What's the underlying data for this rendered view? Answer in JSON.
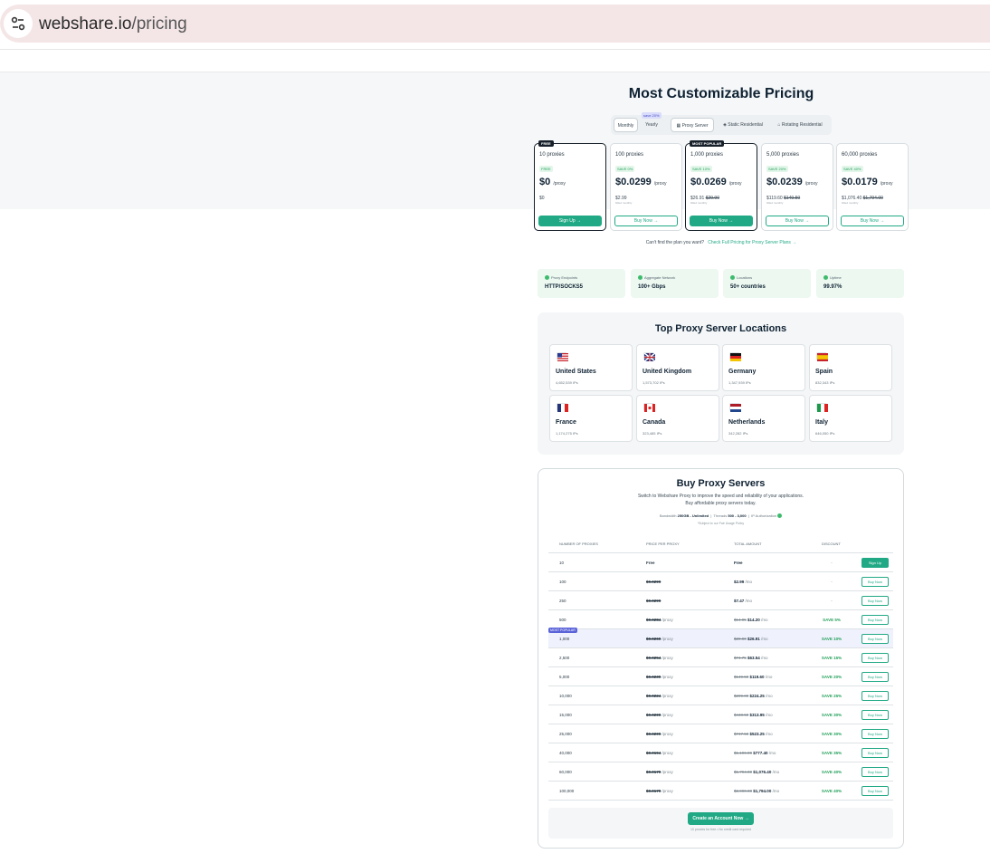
{
  "browser": {
    "url_host": "webshare.io",
    "url_path": "/pricing"
  },
  "hero": {
    "title": "Most Customizable Pricing"
  },
  "billing": {
    "monthly": "Monthly",
    "yearly": "Yearly",
    "save_tag": "save 20%"
  },
  "product_tabs": [
    "Proxy Server",
    "Static Residential",
    "Rotating Residential"
  ],
  "plans": [
    {
      "tag": "FREE",
      "qty": "10 proxies",
      "badge": "FREE",
      "price": "$0",
      "unit": "/proxy",
      "old": "$0",
      "old_strike": "",
      "sub": "",
      "button": "Sign Up →"
    },
    {
      "tag": "",
      "qty": "100 proxies",
      "badge": "SAVE 0%",
      "price": "$0.0299",
      "unit": "/proxy",
      "old": "$2.99",
      "old_strike": "",
      "sub": "billed monthly",
      "button": "Buy Now →"
    },
    {
      "tag": "MOST POPULAR",
      "qty": "1,000 proxies",
      "badge": "SAVE 10%",
      "price": "$0.0269",
      "unit": "/proxy",
      "old": "$26.91",
      "old_strike": "$29.90",
      "sub": "billed monthly",
      "button": "Buy Now →"
    },
    {
      "tag": "",
      "qty": "5,000 proxies",
      "badge": "SAVE 20%",
      "price": "$0.0239",
      "unit": "/proxy",
      "old": "$119.60",
      "old_strike": "$149.50",
      "sub": "billed monthly",
      "button": "Buy Now →"
    },
    {
      "tag": "",
      "qty": "60,000 proxies",
      "badge": "SAVE 40%",
      "price": "$0.0179",
      "unit": "/proxy",
      "old": "$1,076.40",
      "old_strike": "$1,794.00",
      "sub": "billed monthly",
      "button": "Buy Now →"
    }
  ],
  "cant_find": {
    "text": "Can't find the plan you want?",
    "link": "Check Full Pricing for Proxy Server Plans →"
  },
  "stats": [
    {
      "label": "Proxy Endpoints",
      "value": "HTTP/SOCKS5"
    },
    {
      "label": "Aggregate Network",
      "value": "100+ Gbps"
    },
    {
      "label": "Locations",
      "value": "50+ countries"
    },
    {
      "label": "Uptime",
      "value": "99.97%"
    }
  ],
  "locations": {
    "title": "Top Proxy Server Locations",
    "items": [
      {
        "name": "United States",
        "ips": "4,652,539 IPs",
        "flag": "US"
      },
      {
        "name": "United Kingdom",
        "ips": "1,573,702 IPs",
        "flag": "UK"
      },
      {
        "name": "Germany",
        "ips": "1,347,939 IPs",
        "flag": "DE"
      },
      {
        "name": "Spain",
        "ips": "832,343 IPs",
        "flag": "ES"
      },
      {
        "name": "France",
        "ips": "1,174,275 IPs",
        "flag": "FR"
      },
      {
        "name": "Canada",
        "ips": "323,485 IPs",
        "flag": "CA"
      },
      {
        "name": "Netherlands",
        "ips": "342,282 IPs",
        "flag": "NL"
      },
      {
        "name": "Italy",
        "ips": "646,050 IPs",
        "flag": "IT"
      }
    ]
  },
  "buy": {
    "title": "Buy Proxy Servers",
    "desc": "Switch to Webshare Proxy to improve the speed and reliability of your applications. Buy affordable proxy servers today.",
    "bandwidth_label": "Bandwidth",
    "bandwidth_value": "250GB - Unlimited",
    "threads_label": "Threads",
    "threads_value": "500 - 3,000",
    "ipauth_label": "IP Authorization",
    "note": "*Subject to our Fair Usage Policy",
    "headers": [
      "NUMBER OF PROXIES",
      "PRICE PER PROXY",
      "TOTAL AMOUNT",
      "DISCOUNT"
    ],
    "popular_badge": "MOST POPULAR",
    "rows": [
      {
        "qty": "10",
        "ppp": "Free",
        "ppp_unit": "",
        "total_old": "",
        "total": "Free",
        "total_unit": "",
        "discount": "-",
        "button": "Sign Up"
      },
      {
        "qty": "100",
        "ppp": "$0.0299",
        "ppp_unit": "",
        "total_old": "",
        "total": "$2.99",
        "total_unit": "/mo",
        "discount": "-",
        "button": "Buy Now"
      },
      {
        "qty": "250",
        "ppp": "$0.0299",
        "ppp_unit": "",
        "total_old": "",
        "total": "$7.47",
        "total_unit": "/mo",
        "discount": "-",
        "button": "Buy Now"
      },
      {
        "qty": "500",
        "ppp": "$0.0284",
        "ppp_unit": "/proxy",
        "total_old": "$14.95",
        "total": "$14.20",
        "total_unit": "/mo",
        "discount": "SAVE 5%",
        "button": "Buy Now"
      },
      {
        "qty": "1,000",
        "ppp": "$0.0269",
        "ppp_unit": "/proxy",
        "total_old": "$29.90",
        "total": "$26.91",
        "total_unit": "/mo",
        "discount": "SAVE 10%",
        "button": "Buy Now"
      },
      {
        "qty": "2,500",
        "ppp": "$0.0254",
        "ppp_unit": "/proxy",
        "total_old": "$74.75",
        "total": "$63.54",
        "total_unit": "/mo",
        "discount": "SAVE 15%",
        "button": "Buy Now"
      },
      {
        "qty": "5,000",
        "ppp": "$0.0239",
        "ppp_unit": "/proxy",
        "total_old": "$149.50",
        "total": "$119.60",
        "total_unit": "/mo",
        "discount": "SAVE 20%",
        "button": "Buy Now"
      },
      {
        "qty": "10,000",
        "ppp": "$0.0224",
        "ppp_unit": "/proxy",
        "total_old": "$299.00",
        "total": "$224.25",
        "total_unit": "/mo",
        "discount": "SAVE 25%",
        "button": "Buy Now"
      },
      {
        "qty": "15,000",
        "ppp": "$0.0209",
        "ppp_unit": "/proxy",
        "total_old": "$448.50",
        "total": "$313.95",
        "total_unit": "/mo",
        "discount": "SAVE 30%",
        "button": "Buy Now"
      },
      {
        "qty": "25,000",
        "ppp": "$0.0209",
        "ppp_unit": "/proxy",
        "total_old": "$747.50",
        "total": "$523.25",
        "total_unit": "/mo",
        "discount": "SAVE 30%",
        "button": "Buy Now"
      },
      {
        "qty": "40,000",
        "ppp": "$0.0194",
        "ppp_unit": "/proxy",
        "total_old": "$1,196.00",
        "total": "$777.40",
        "total_unit": "/mo",
        "discount": "SAVE 35%",
        "button": "Buy Now"
      },
      {
        "qty": "60,000",
        "ppp": "$0.0179",
        "ppp_unit": "/proxy",
        "total_old": "$1,794.00",
        "total": "$1,076.40",
        "total_unit": "/mo",
        "discount": "SAVE 40%",
        "button": "Buy Now"
      },
      {
        "qty": "100,000",
        "ppp": "$0.0179",
        "ppp_unit": "/proxy",
        "total_old": "$2,990.00",
        "total": "$1,794.00",
        "total_unit": "/mo",
        "discount": "SAVE 40%",
        "button": "Buy Now"
      }
    ],
    "cta": "Create an Account Now →",
    "cta_note": "10 proxies for free • No credit card required"
  },
  "colors": {
    "accent": "#21a985",
    "popular": "#5a63d8",
    "dark": "#0f2233"
  }
}
